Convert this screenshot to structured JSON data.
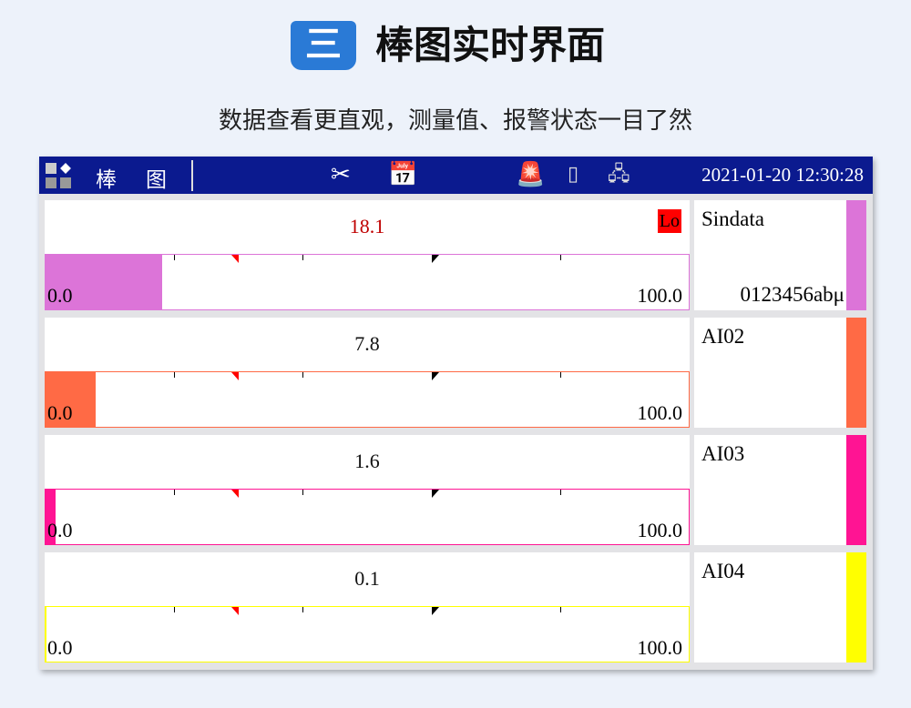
{
  "heading": {
    "badge": "三",
    "title": "棒图实时界面",
    "subtitle": "数据查看更直观，测量值、报警状态一目了然"
  },
  "header": {
    "menu_icon": "grid-menu-icon",
    "title_chars": [
      "棒",
      "图"
    ],
    "icons": [
      "scissors-icon",
      "calendar-clock-icon",
      "alarm-light-icon",
      "usb-ok-icon",
      "network-disconnected-icon"
    ],
    "datetime": "2021-01-20  12:30:28",
    "bg_color": "#0b1a8f"
  },
  "channels": [
    {
      "value": "18.1",
      "value_color": "#c00000",
      "alarm": "Lo",
      "min": "0.0",
      "max": "100.0",
      "percent": 18.1,
      "name": "Sindata",
      "desc": "0123456abμ",
      "color": "#dc74d8",
      "low_mark": 30,
      "high_mark": 60
    },
    {
      "value": "7.8",
      "value_color": "#111111",
      "alarm": "",
      "min": "0.0",
      "max": "100.0",
      "percent": 7.8,
      "name": "AI02",
      "desc": "",
      "color": "#ff6a45",
      "low_mark": 30,
      "high_mark": 60
    },
    {
      "value": "1.6",
      "value_color": "#111111",
      "alarm": "",
      "min": "0.0",
      "max": "100.0",
      "percent": 1.6,
      "name": "AI03",
      "desc": "",
      "color": "#ff1493",
      "low_mark": 30,
      "high_mark": 60
    },
    {
      "value": "0.1",
      "value_color": "#111111",
      "alarm": "",
      "min": "0.0",
      "max": "100.0",
      "percent": 0.1,
      "name": "AI04",
      "desc": "",
      "color": "#ffff00",
      "low_mark": 30,
      "high_mark": 60
    }
  ]
}
